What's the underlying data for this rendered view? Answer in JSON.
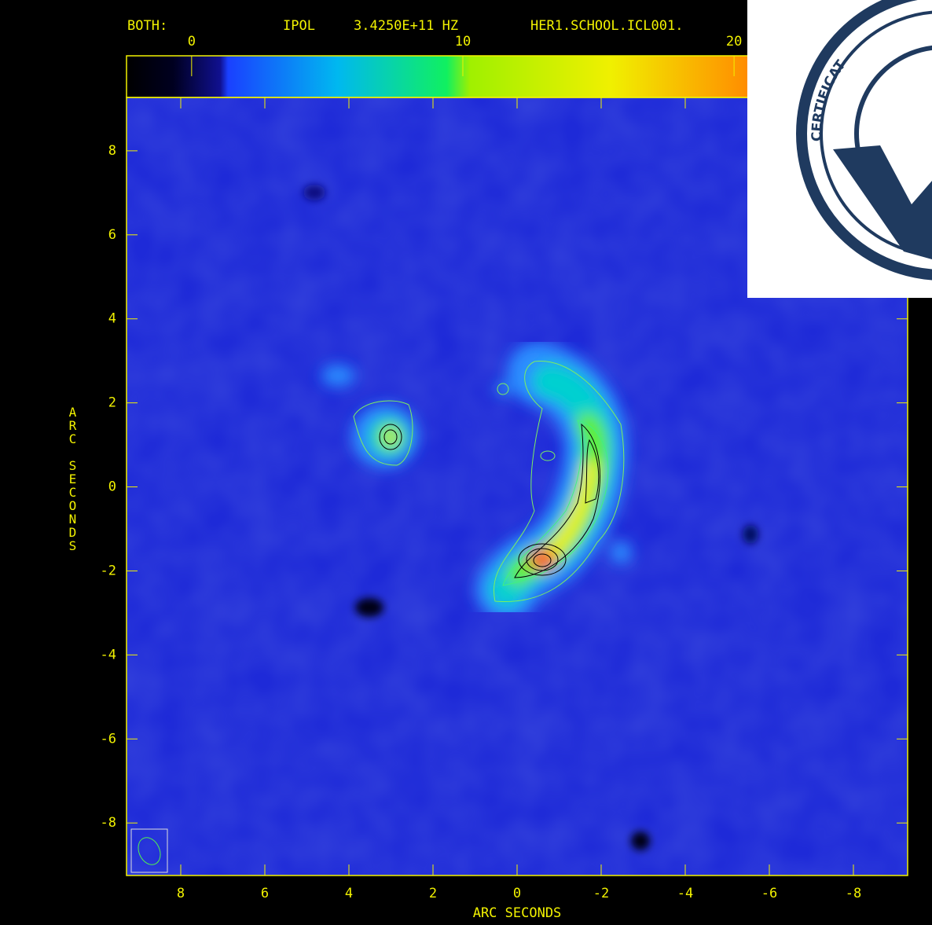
{
  "chart_data": {
    "type": "image",
    "title": "BOTH:",
    "header": [
      "IPOL",
      "3.4250E+11 HZ",
      "HER1.SCHOOL.ICL001."
    ],
    "colorbar": {
      "lim": [
        -2.4,
        26.4
      ],
      "ticks": [
        0,
        10,
        20
      ]
    },
    "xlabel": "ARC SECONDS",
    "ylabel": "ARC SECONDS",
    "xlim": [
      9.29,
      -9.29
    ],
    "ylim": [
      -9.25,
      9.27
    ],
    "xticks": [
      8,
      6,
      4,
      2,
      0,
      -2,
      -4,
      -6,
      -8
    ],
    "yticks": [
      8,
      6,
      4,
      2,
      0,
      -2,
      -4,
      -6,
      -8
    ],
    "color": "#f2f200",
    "watermark": "CERTIFICAT"
  }
}
